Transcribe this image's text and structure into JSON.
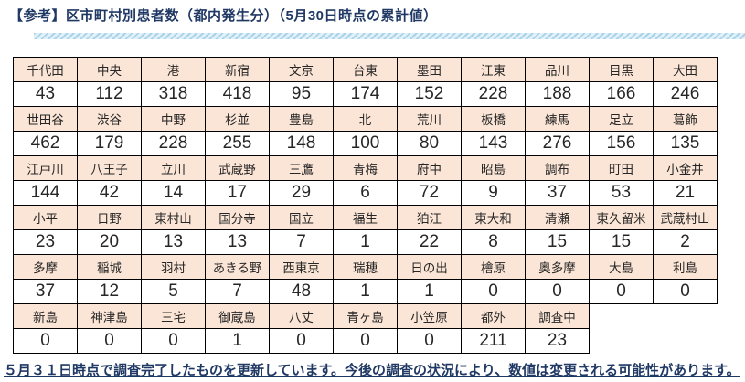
{
  "page": {
    "title": "【参考】区市町村別患者数（都内発生分）（5月30日時点の累計値）",
    "footer_note": "５月３１日時点で調査完了したものを更新しています。今後の調査の状況により、数値は変更される可能性があります。"
  },
  "colors": {
    "title_text": "#1F3864",
    "footer_text": "#1F3864",
    "header_cell_bg": "#FBE5D6",
    "cell_border": "#000000",
    "divider_stripe_dark": "#A9D3E8",
    "divider_stripe_light": "#E2F1F9"
  },
  "chart_data": {
    "type": "table",
    "title": "区市町村別患者数（都内発生分）5月30日時点の累計値",
    "columns_per_band": 11,
    "bands": [
      {
        "labels": [
          "千代田",
          "中央",
          "港",
          "新宿",
          "文京",
          "台東",
          "墨田",
          "江東",
          "品川",
          "目黒",
          "大田"
        ],
        "values": [
          43,
          112,
          318,
          418,
          95,
          174,
          152,
          228,
          188,
          166,
          246
        ]
      },
      {
        "labels": [
          "世田谷",
          "渋谷",
          "中野",
          "杉並",
          "豊島",
          "北",
          "荒川",
          "板橋",
          "練馬",
          "足立",
          "葛飾"
        ],
        "values": [
          462,
          179,
          228,
          255,
          148,
          100,
          80,
          143,
          276,
          156,
          135
        ]
      },
      {
        "labels": [
          "江戸川",
          "八王子",
          "立川",
          "武蔵野",
          "三鷹",
          "青梅",
          "府中",
          "昭島",
          "調布",
          "町田",
          "小金井"
        ],
        "values": [
          144,
          42,
          14,
          17,
          29,
          6,
          72,
          9,
          37,
          53,
          21
        ]
      },
      {
        "labels": [
          "小平",
          "日野",
          "東村山",
          "国分寺",
          "国立",
          "福生",
          "狛江",
          "東大和",
          "清瀬",
          "東久留米",
          "武蔵村山"
        ],
        "values": [
          23,
          20,
          13,
          13,
          7,
          1,
          22,
          8,
          15,
          15,
          2
        ]
      },
      {
        "labels": [
          "多摩",
          "稲城",
          "羽村",
          "あきる野",
          "西東京",
          "瑞穂",
          "日の出",
          "檜原",
          "奥多摩",
          "大島",
          "利島"
        ],
        "values": [
          37,
          12,
          5,
          7,
          48,
          1,
          1,
          0,
          0,
          0,
          0
        ]
      },
      {
        "labels": [
          "新島",
          "神津島",
          "三宅",
          "御蔵島",
          "八丈",
          "青ヶ島",
          "小笠原",
          "都外",
          "調査中"
        ],
        "values": [
          0,
          0,
          0,
          1,
          0,
          0,
          0,
          211,
          23
        ]
      }
    ]
  }
}
